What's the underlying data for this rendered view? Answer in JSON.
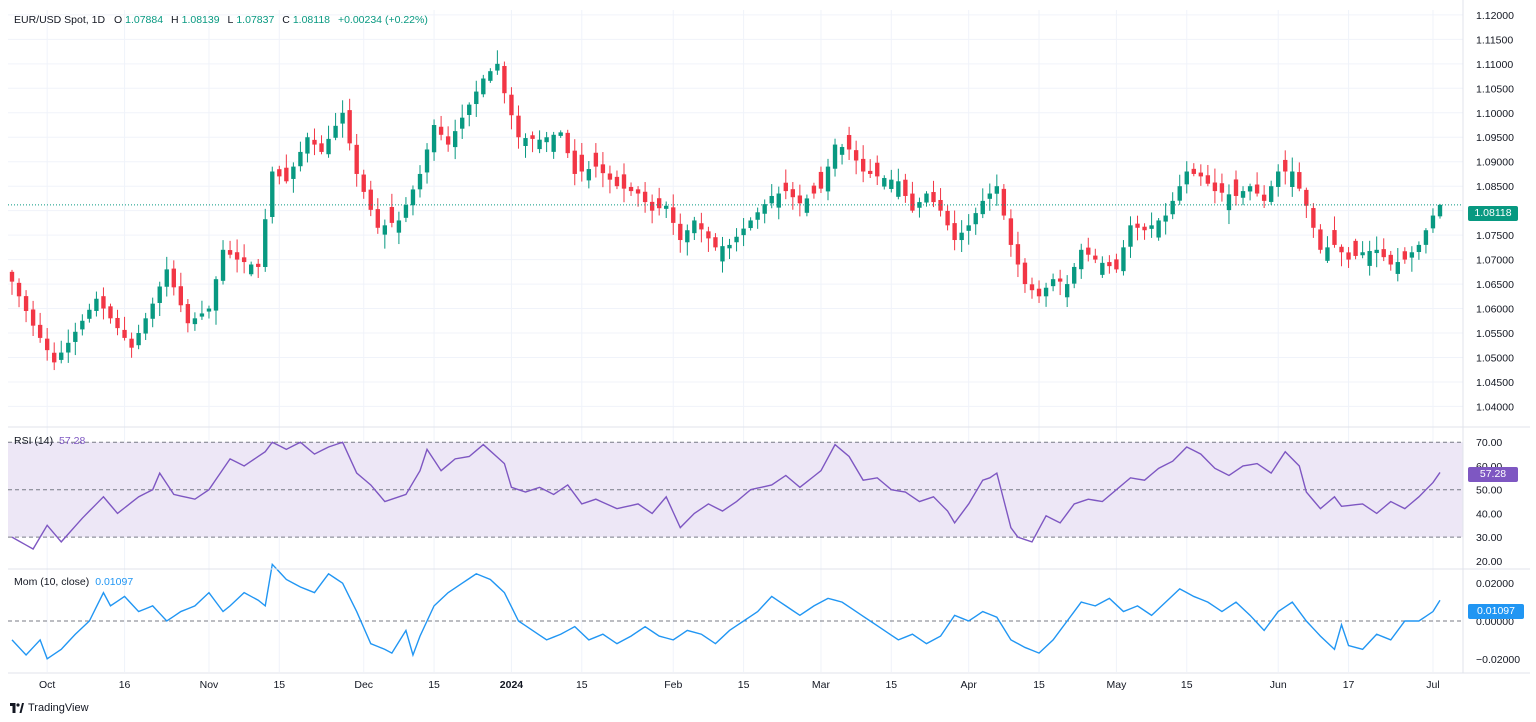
{
  "legend": {
    "symbol": "EUR/USD Spot, 1D",
    "open_label": "O",
    "open": "1.07884",
    "high_label": "H",
    "high": "1.08139",
    "low_label": "L",
    "low": "1.07837",
    "close_label": "C",
    "close": "1.08118",
    "change": "+0.00234 (+0.22%)",
    "rsi_label": "RSI (14)",
    "rsi_value": "57.28",
    "mom_label": "Mom (10, close)",
    "mom_value": "0.01097"
  },
  "last_price_badge": "1.08118",
  "rsi_badge": "57.28",
  "mom_badge": "0.01097",
  "brand": "TradingView",
  "colors": {
    "up": "#089981",
    "down": "#f23645",
    "rsi": "#7e57c2",
    "rsi_band": "#ede7f6",
    "mom": "#2196f3",
    "grid": "#f0f3fa"
  },
  "chart_data": {
    "type": "candlestick",
    "title": "EUR/USD Spot, 1D",
    "price_axis": {
      "ylim": [
        1.036,
        1.121
      ],
      "ticks": [
        "1.04000",
        "1.04500",
        "1.05000",
        "1.05500",
        "1.06000",
        "1.06500",
        "1.07000",
        "1.07500",
        "1.08000",
        "1.08500",
        "1.09000",
        "1.09500",
        "1.10000",
        "1.10500",
        "1.11000",
        "1.11500",
        "1.12000"
      ],
      "tick_values": [
        1.04,
        1.045,
        1.05,
        1.055,
        1.06,
        1.065,
        1.07,
        1.075,
        1.08,
        1.085,
        1.09,
        1.095,
        1.1,
        1.105,
        1.11,
        1.115,
        1.12
      ]
    },
    "x_axis_labels": [
      {
        "label": "Oct",
        "index": 5
      },
      {
        "label": "16",
        "index": 16
      },
      {
        "label": "Nov",
        "index": 28
      },
      {
        "label": "15",
        "index": 38
      },
      {
        "label": "Dec",
        "index": 50
      },
      {
        "label": "15",
        "index": 60
      },
      {
        "label": "2024",
        "index": 71
      },
      {
        "label": "15",
        "index": 81
      },
      {
        "label": "Feb",
        "index": 94
      },
      {
        "label": "15",
        "index": 104
      },
      {
        "label": "Mar",
        "index": 115
      },
      {
        "label": "15",
        "index": 125
      },
      {
        "label": "Apr",
        "index": 136
      },
      {
        "label": "15",
        "index": 146
      },
      {
        "label": "May",
        "index": 157
      },
      {
        "label": "15",
        "index": 167
      },
      {
        "label": "Jun",
        "index": 180
      },
      {
        "label": "17",
        "index": 190
      },
      {
        "label": "Jul",
        "index": 202
      }
    ],
    "close_anchors": [
      [
        0,
        1.0655
      ],
      [
        3,
        1.0565
      ],
      [
        6,
        1.049
      ],
      [
        8,
        1.053
      ],
      [
        12,
        1.062
      ],
      [
        14,
        1.058
      ],
      [
        17,
        1.052
      ],
      [
        20,
        1.061
      ],
      [
        22,
        1.068
      ],
      [
        25,
        1.057
      ],
      [
        28,
        1.06
      ],
      [
        30,
        1.072
      ],
      [
        32,
        1.07
      ],
      [
        35,
        1.0685
      ],
      [
        37,
        1.088
      ],
      [
        39,
        1.086
      ],
      [
        42,
        1.095
      ],
      [
        44,
        1.092
      ],
      [
        47,
        1.1
      ],
      [
        49,
        1.0875
      ],
      [
        52,
        1.0765
      ],
      [
        55,
        1.078
      ],
      [
        58,
        1.0875
      ],
      [
        60,
        1.0975
      ],
      [
        62,
        1.0935
      ],
      [
        64,
        1.099
      ],
      [
        67,
        1.107
      ],
      [
        69,
        1.11
      ],
      [
        70,
        1.104
      ],
      [
        72,
        1.095
      ],
      [
        75,
        1.0945
      ],
      [
        78,
        1.096
      ],
      [
        80,
        1.0875
      ],
      [
        83,
        1.089
      ],
      [
        86,
        1.085
      ],
      [
        89,
        1.0835
      ],
      [
        91,
        1.08
      ],
      [
        93,
        1.081
      ],
      [
        95,
        1.074
      ],
      [
        97,
        1.078
      ],
      [
        100,
        1.0725
      ],
      [
        102,
        1.073
      ],
      [
        105,
        1.078
      ],
      [
        108,
        1.083
      ],
      [
        110,
        1.084
      ],
      [
        112,
        1.0815
      ],
      [
        115,
        1.0845
      ],
      [
        117,
        1.0935
      ],
      [
        119,
        1.0925
      ],
      [
        121,
        1.088
      ],
      [
        123,
        1.087
      ],
      [
        126,
        1.086
      ],
      [
        128,
        1.08
      ],
      [
        130,
        1.0835
      ],
      [
        132,
        1.08
      ],
      [
        134,
        1.074
      ],
      [
        136,
        1.077
      ],
      [
        138,
        1.082
      ],
      [
        140,
        1.085
      ],
      [
        142,
        1.073
      ],
      [
        144,
        1.065
      ],
      [
        146,
        1.0625
      ],
      [
        148,
        1.066
      ],
      [
        150,
        1.065
      ],
      [
        152,
        1.072
      ],
      [
        154,
        1.07
      ],
      [
        157,
        1.068
      ],
      [
        159,
        1.077
      ],
      [
        161,
        1.076
      ],
      [
        164,
        1.079
      ],
      [
        167,
        1.088
      ],
      [
        169,
        1.087
      ],
      [
        171,
        1.084
      ],
      [
        174,
        1.083
      ],
      [
        176,
        1.085
      ],
      [
        178,
        1.082
      ],
      [
        180,
        1.088
      ],
      [
        182,
        1.088
      ],
      [
        184,
        1.081
      ],
      [
        186,
        1.072
      ],
      [
        188,
        1.073
      ],
      [
        190,
        1.07
      ],
      [
        192,
        1.0715
      ],
      [
        194,
        1.072
      ],
      [
        196,
        1.069
      ],
      [
        198,
        1.07
      ],
      [
        200,
        1.073
      ],
      [
        202,
        1.079
      ],
      [
        203,
        1.0812
      ]
    ],
    "last_close": 1.08118,
    "rsi": {
      "label": "RSI (14)",
      "value": 57.28,
      "ylim": [
        17,
        76
      ],
      "ticks": [
        20,
        30,
        40,
        50,
        60,
        70
      ],
      "levels": [
        30,
        50,
        70
      ],
      "anchors": [
        [
          0,
          30
        ],
        [
          3,
          25
        ],
        [
          5,
          35
        ],
        [
          7,
          28
        ],
        [
          10,
          38
        ],
        [
          13,
          47
        ],
        [
          15,
          40
        ],
        [
          18,
          47
        ],
        [
          20,
          50
        ],
        [
          21,
          57
        ],
        [
          23,
          48
        ],
        [
          26,
          46
        ],
        [
          28,
          50
        ],
        [
          31,
          63
        ],
        [
          33,
          60
        ],
        [
          36,
          66
        ],
        [
          37,
          70
        ],
        [
          39,
          67
        ],
        [
          41,
          70
        ],
        [
          43,
          65
        ],
        [
          45,
          68
        ],
        [
          47,
          70
        ],
        [
          49,
          57
        ],
        [
          51,
          52
        ],
        [
          53,
          45
        ],
        [
          56,
          48
        ],
        [
          58,
          58
        ],
        [
          59,
          67
        ],
        [
          61,
          58
        ],
        [
          63,
          63
        ],
        [
          65,
          64
        ],
        [
          67,
          69
        ],
        [
          70,
          61
        ],
        [
          71,
          51
        ],
        [
          73,
          49
        ],
        [
          75,
          51
        ],
        [
          77,
          48
        ],
        [
          79,
          52
        ],
        [
          81,
          44
        ],
        [
          83,
          46
        ],
        [
          86,
          42
        ],
        [
          89,
          44
        ],
        [
          91,
          40
        ],
        [
          93,
          47
        ],
        [
          95,
          34
        ],
        [
          97,
          40
        ],
        [
          99,
          44
        ],
        [
          101,
          41
        ],
        [
          103,
          45
        ],
        [
          105,
          50
        ],
        [
          108,
          52
        ],
        [
          110,
          56
        ],
        [
          112,
          51
        ],
        [
          115,
          58
        ],
        [
          117,
          69
        ],
        [
          119,
          64
        ],
        [
          121,
          54
        ],
        [
          123,
          55
        ],
        [
          125,
          50
        ],
        [
          127,
          49
        ],
        [
          129,
          45
        ],
        [
          131,
          47
        ],
        [
          133,
          41
        ],
        [
          134,
          36
        ],
        [
          136,
          44
        ],
        [
          138,
          54
        ],
        [
          139,
          55
        ],
        [
          140,
          57
        ],
        [
          142,
          34
        ],
        [
          143,
          30
        ],
        [
          145,
          28
        ],
        [
          147,
          39
        ],
        [
          149,
          36
        ],
        [
          151,
          44
        ],
        [
          153,
          46
        ],
        [
          155,
          45
        ],
        [
          157,
          50
        ],
        [
          159,
          55
        ],
        [
          161,
          54
        ],
        [
          163,
          59
        ],
        [
          165,
          62
        ],
        [
          167,
          68
        ],
        [
          169,
          65
        ],
        [
          171,
          59
        ],
        [
          173,
          56
        ],
        [
          175,
          60
        ],
        [
          177,
          61
        ],
        [
          179,
          57
        ],
        [
          181,
          66
        ],
        [
          183,
          60
        ],
        [
          184,
          49
        ],
        [
          186,
          42
        ],
        [
          188,
          47
        ],
        [
          189,
          43
        ],
        [
          192,
          44
        ],
        [
          194,
          40
        ],
        [
          196,
          45
        ],
        [
          198,
          42
        ],
        [
          200,
          47
        ],
        [
          202,
          53
        ],
        [
          203,
          57.28
        ]
      ]
    },
    "momentum": {
      "label": "Mom (10, close)",
      "value": 0.01097,
      "ylim": [
        -0.027,
        0.027
      ],
      "ticks": [
        -0.02,
        0.0,
        0.02
      ],
      "tick_labels": [
        "−0.02000",
        "0.00000",
        "0.02000"
      ],
      "zero_line": 0,
      "anchors": [
        [
          0,
          -0.01
        ],
        [
          2,
          -0.018
        ],
        [
          4,
          -0.01
        ],
        [
          5,
          -0.02
        ],
        [
          7,
          -0.015
        ],
        [
          9,
          -0.007
        ],
        [
          11,
          0.0
        ],
        [
          13,
          0.015
        ],
        [
          14,
          0.008
        ],
        [
          16,
          0.013
        ],
        [
          18,
          0.005
        ],
        [
          20,
          0.008
        ],
        [
          22,
          0.0
        ],
        [
          24,
          0.005
        ],
        [
          26,
          0.008
        ],
        [
          28,
          0.015
        ],
        [
          30,
          0.005
        ],
        [
          31,
          0.008
        ],
        [
          33,
          0.015
        ],
        [
          35,
          0.011
        ],
        [
          36,
          0.008
        ],
        [
          37,
          0.03
        ],
        [
          39,
          0.022
        ],
        [
          41,
          0.018
        ],
        [
          43,
          0.015
        ],
        [
          45,
          0.025
        ],
        [
          47,
          0.02
        ],
        [
          49,
          0.005
        ],
        [
          51,
          -0.012
        ],
        [
          53,
          -0.015
        ],
        [
          54,
          -0.017
        ],
        [
          56,
          -0.005
        ],
        [
          57,
          -0.018
        ],
        [
          58,
          -0.008
        ],
        [
          60,
          0.008
        ],
        [
          62,
          0.015
        ],
        [
          64,
          0.02
        ],
        [
          66,
          0.025
        ],
        [
          68,
          0.022
        ],
        [
          70,
          0.015
        ],
        [
          72,
          0.0
        ],
        [
          74,
          -0.005
        ],
        [
          76,
          -0.01
        ],
        [
          78,
          -0.007
        ],
        [
          80,
          -0.003
        ],
        [
          82,
          -0.01
        ],
        [
          84,
          -0.007
        ],
        [
          86,
          -0.012
        ],
        [
          88,
          -0.008
        ],
        [
          90,
          -0.003
        ],
        [
          92,
          -0.008
        ],
        [
          94,
          -0.01
        ],
        [
          96,
          -0.005
        ],
        [
          98,
          -0.007
        ],
        [
          100,
          -0.012
        ],
        [
          102,
          -0.005
        ],
        [
          104,
          0.0
        ],
        [
          106,
          0.005
        ],
        [
          108,
          0.013
        ],
        [
          110,
          0.008
        ],
        [
          112,
          0.003
        ],
        [
          114,
          0.008
        ],
        [
          116,
          0.012
        ],
        [
          118,
          0.01
        ],
        [
          120,
          0.005
        ],
        [
          122,
          0.0
        ],
        [
          124,
          -0.005
        ],
        [
          126,
          -0.01
        ],
        [
          128,
          -0.007
        ],
        [
          130,
          -0.012
        ],
        [
          132,
          -0.008
        ],
        [
          134,
          0.003
        ],
        [
          136,
          0.0
        ],
        [
          138,
          0.005
        ],
        [
          140,
          0.002
        ],
        [
          142,
          -0.01
        ],
        [
          144,
          -0.014
        ],
        [
          146,
          -0.017
        ],
        [
          148,
          -0.01
        ],
        [
          150,
          0.0
        ],
        [
          152,
          0.01
        ],
        [
          154,
          0.008
        ],
        [
          156,
          0.012
        ],
        [
          158,
          0.005
        ],
        [
          160,
          0.008
        ],
        [
          162,
          0.003
        ],
        [
          164,
          0.01
        ],
        [
          166,
          0.017
        ],
        [
          168,
          0.013
        ],
        [
          170,
          0.01
        ],
        [
          172,
          0.005
        ],
        [
          174,
          0.01
        ],
        [
          176,
          0.003
        ],
        [
          178,
          -0.005
        ],
        [
          180,
          0.005
        ],
        [
          182,
          0.01
        ],
        [
          184,
          0.0
        ],
        [
          186,
          -0.008
        ],
        [
          188,
          -0.015
        ],
        [
          189,
          -0.002
        ],
        [
          190,
          -0.013
        ],
        [
          192,
          -0.015
        ],
        [
          194,
          -0.007
        ],
        [
          196,
          -0.01
        ],
        [
          198,
          0.0
        ],
        [
          200,
          0.0
        ],
        [
          202,
          0.005
        ],
        [
          203,
          0.01097
        ]
      ]
    }
  }
}
